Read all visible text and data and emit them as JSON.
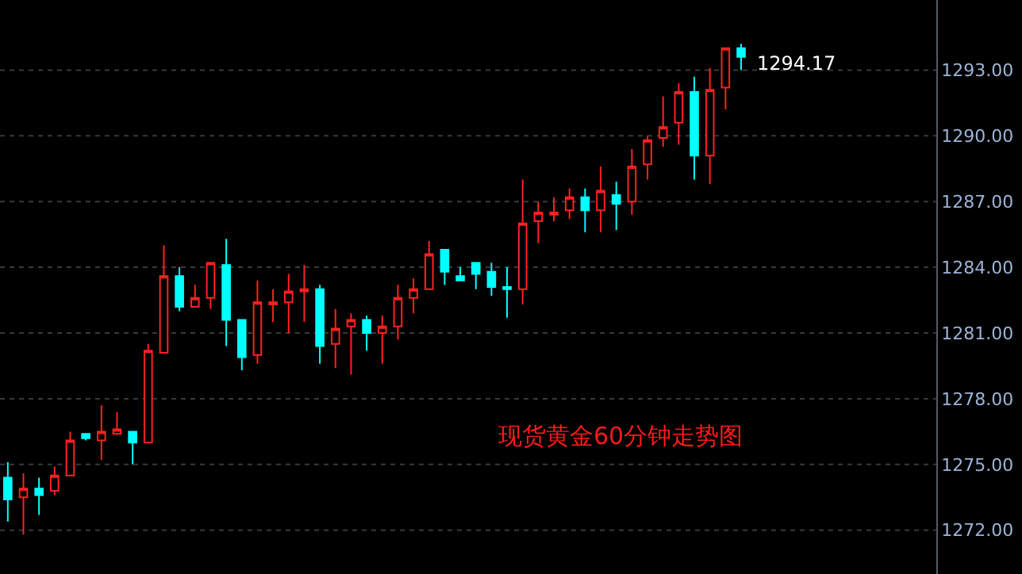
{
  "chart_data": {
    "type": "candlestick",
    "categories": [
      null,
      null,
      null,
      null,
      null,
      null,
      null,
      null,
      null,
      null,
      null,
      null,
      null,
      null,
      null,
      null,
      null,
      null,
      null,
      null,
      null,
      null,
      null,
      null,
      null,
      null,
      null,
      null,
      null,
      null,
      null,
      null,
      null,
      null,
      null,
      null,
      null,
      null,
      null,
      null,
      null,
      null,
      null,
      null,
      null,
      null,
      null,
      null,
      null,
      null,
      null,
      null,
      null,
      null,
      null,
      null,
      null,
      null,
      null,
      null
    ],
    "ohlc": [
      [
        1274.4,
        1275.1,
        1272.4,
        1273.4
      ],
      [
        1273.5,
        1274.6,
        1271.8,
        1273.9
      ],
      [
        1273.9,
        1274.4,
        1272.7,
        1273.6
      ],
      [
        1273.8,
        1274.9,
        1273.6,
        1274.5
      ],
      [
        1274.5,
        1276.5,
        1274.5,
        1276.1
      ],
      [
        1276.4,
        1276.4,
        1276.1,
        1276.2
      ],
      [
        1276.1,
        1277.7,
        1275.2,
        1276.5
      ],
      [
        1276.4,
        1277.4,
        1276.4,
        1276.6
      ],
      [
        1276.5,
        1276.5,
        1275.0,
        1276.0
      ],
      [
        1276.0,
        1280.5,
        1276.0,
        1280.2
      ],
      [
        1280.1,
        1285.0,
        1280.1,
        1283.6
      ],
      [
        1283.6,
        1284.0,
        1282.0,
        1282.2
      ],
      [
        1282.2,
        1283.2,
        1282.2,
        1282.6
      ],
      [
        1282.6,
        1284.2,
        1282.1,
        1284.2
      ],
      [
        1284.1,
        1285.3,
        1280.4,
        1281.6
      ],
      [
        1281.6,
        1281.6,
        1279.3,
        1279.9
      ],
      [
        1280.0,
        1283.4,
        1279.6,
        1282.4
      ],
      [
        1282.3,
        1283.0,
        1281.5,
        1282.4
      ],
      [
        1282.4,
        1283.7,
        1281.0,
        1282.9
      ],
      [
        1282.9,
        1284.1,
        1281.5,
        1283.0
      ],
      [
        1283.0,
        1283.2,
        1279.6,
        1280.4
      ],
      [
        1280.5,
        1282.1,
        1279.4,
        1281.2
      ],
      [
        1281.3,
        1281.9,
        1279.1,
        1281.6
      ],
      [
        1281.6,
        1281.8,
        1280.2,
        1281.0
      ],
      [
        1281.0,
        1281.8,
        1279.6,
        1281.3
      ],
      [
        1281.3,
        1283.2,
        1280.7,
        1282.6
      ],
      [
        1282.6,
        1283.5,
        1281.9,
        1283.0
      ],
      [
        1283.0,
        1285.2,
        1283.0,
        1284.6
      ],
      [
        1284.8,
        1284.8,
        1283.2,
        1283.8
      ],
      [
        1283.6,
        1284.0,
        1283.4,
        1283.4
      ],
      [
        1284.2,
        1284.2,
        1283.0,
        1283.7
      ],
      [
        1283.8,
        1284.2,
        1282.7,
        1283.1
      ],
      [
        1283.1,
        1284.0,
        1281.7,
        1283.0
      ],
      [
        1283.0,
        1288.0,
        1282.3,
        1286.0
      ],
      [
        1286.1,
        1287.0,
        1285.1,
        1286.5
      ],
      [
        1286.4,
        1287.2,
        1286.1,
        1286.5
      ],
      [
        1286.6,
        1287.6,
        1286.2,
        1287.2
      ],
      [
        1287.2,
        1287.6,
        1285.6,
        1286.6
      ],
      [
        1286.6,
        1288.6,
        1285.6,
        1287.5
      ],
      [
        1287.3,
        1287.9,
        1285.7,
        1286.9
      ],
      [
        1287.0,
        1289.4,
        1286.4,
        1288.6
      ],
      [
        1288.7,
        1290.0,
        1288.0,
        1289.8
      ],
      [
        1289.9,
        1291.8,
        1289.5,
        1290.4
      ],
      [
        1290.6,
        1292.4,
        1289.6,
        1292.0
      ],
      [
        1292.0,
        1292.7,
        1288.0,
        1289.1
      ],
      [
        1289.1,
        1293.1,
        1287.8,
        1292.1
      ],
      [
        1292.2,
        1294.0,
        1291.2,
        1294.0
      ],
      [
        1294.0,
        1294.2,
        1293.0,
        1293.6
      ],
      null,
      null,
      null,
      null,
      null,
      null,
      null,
      null,
      null,
      null,
      null,
      null
    ],
    "colors": [
      "#00ffff",
      "#ff2020",
      "#00ffff",
      "#ff2020",
      "#ff2020",
      "#00ffff",
      "#ff2020",
      "#ff2020",
      "#00ffff",
      "#ff2020",
      "#ff2020",
      "#00ffff",
      "#ff2020",
      "#ff2020",
      "#00ffff",
      "#00ffff",
      "#ff2020",
      "#ff2020",
      "#ff2020",
      "#ff2020",
      "#00ffff",
      "#ff2020",
      "#ff2020",
      "#00ffff",
      "#ff2020",
      "#ff2020",
      "#ff2020",
      "#ff2020",
      "#00ffff",
      "#00ffff",
      "#00ffff",
      "#00ffff",
      "#00ffff",
      "#ff2020",
      "#ff2020",
      "#ff2020",
      "#ff2020",
      "#00ffff",
      "#ff2020",
      "#00ffff",
      "#ff2020",
      "#ff2020",
      "#ff2020",
      "#ff2020",
      "#00ffff",
      "#ff2020",
      "#ff2020",
      "#00ffff",
      null,
      null,
      null,
      null,
      null,
      null,
      null,
      null,
      null,
      null,
      null,
      null
    ],
    "ylim": [
      1270.0,
      1296.2
    ],
    "yticks": [
      {
        "value": 1272,
        "label": "1272.00"
      },
      {
        "value": 1275,
        "label": "1275.00"
      },
      {
        "value": 1278,
        "label": "1278.00"
      },
      {
        "value": 1281,
        "label": "1281.00"
      },
      {
        "value": 1284,
        "label": "1284.00"
      },
      {
        "value": 1287,
        "label": "1287.00"
      },
      {
        "value": 1290,
        "label": "1290.00"
      },
      {
        "value": 1293,
        "label": "1293.00"
      }
    ],
    "tick_labels": "y",
    "grid": "y",
    "annotations": [
      "1294.17",
      "现货黄金60分钟走势图"
    ]
  }
}
